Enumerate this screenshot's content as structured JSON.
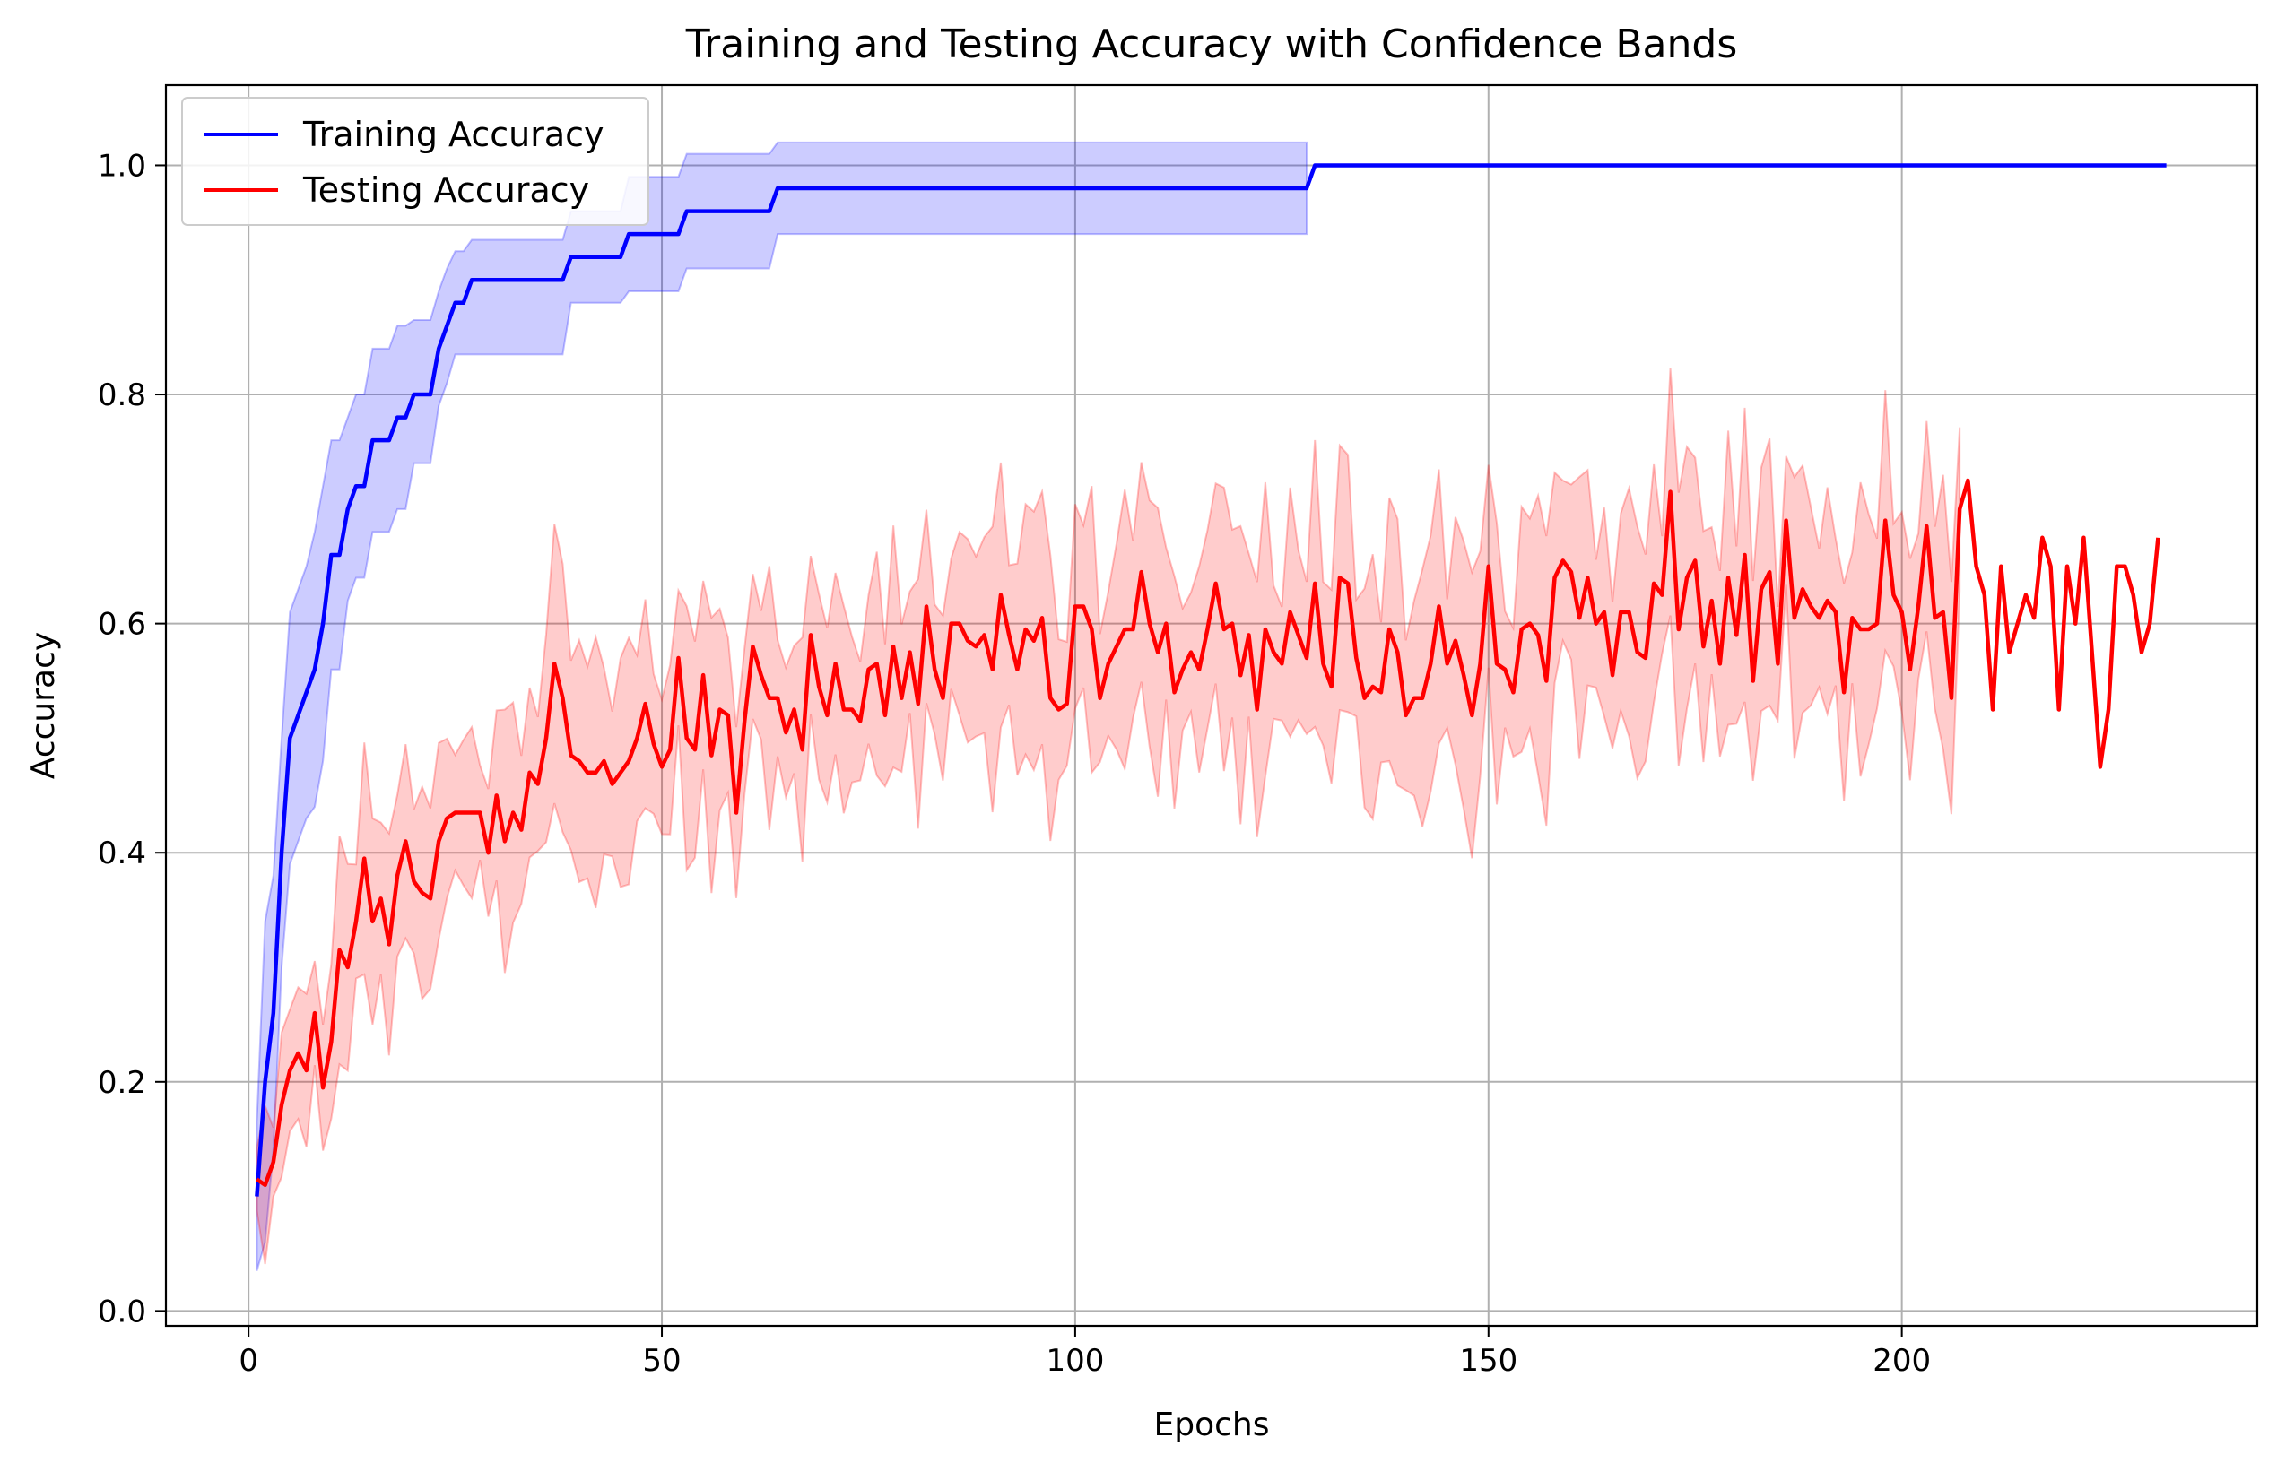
{
  "chart_data": {
    "type": "line",
    "title": "Training and Testing Accuracy with Confidence Bands",
    "xlabel": "Epochs",
    "ylabel": "Accuracy",
    "xlim": [
      -10,
      243
    ],
    "ylim": [
      -0.013,
      1.07
    ],
    "xticks": [
      0,
      50,
      100,
      150,
      200
    ],
    "yticks": [
      0.0,
      0.2,
      0.4,
      0.6,
      0.8,
      1.0
    ],
    "xtick_labels": [
      "0",
      "50",
      "100",
      "150",
      "200"
    ],
    "ytick_labels": [
      "0.0",
      "0.2",
      "0.4",
      "0.6",
      "0.8",
      "1.0"
    ],
    "grid": true,
    "legend_position": "top-left",
    "series": [
      {
        "name": "Training Accuracy",
        "color": "#0000ff",
        "band_color": "#0000ff",
        "band_opacity": 0.2,
        "band_end_epoch": 129,
        "points": [
          [
            1,
            0.1
          ],
          [
            2,
            0.2
          ],
          [
            3,
            0.26
          ],
          [
            4,
            0.4
          ],
          [
            5,
            0.5
          ],
          [
            6,
            0.52
          ],
          [
            7,
            0.54
          ],
          [
            8,
            0.56
          ],
          [
            9,
            0.6
          ],
          [
            10,
            0.66
          ],
          [
            11,
            0.66
          ],
          [
            12,
            0.7
          ],
          [
            13,
            0.72
          ],
          [
            14,
            0.72
          ],
          [
            15,
            0.76
          ],
          [
            16,
            0.76
          ],
          [
            17,
            0.76
          ],
          [
            18,
            0.78
          ],
          [
            19,
            0.78
          ],
          [
            20,
            0.8
          ],
          [
            21,
            0.8
          ],
          [
            22,
            0.8
          ],
          [
            23,
            0.84
          ],
          [
            24,
            0.86
          ],
          [
            25,
            0.88
          ],
          [
            26,
            0.88
          ],
          [
            27,
            0.9
          ],
          [
            28,
            0.9
          ],
          [
            38,
            0.9
          ],
          [
            39,
            0.92
          ],
          [
            45,
            0.92
          ],
          [
            46,
            0.94
          ],
          [
            52,
            0.94
          ],
          [
            53,
            0.96
          ],
          [
            63,
            0.96
          ],
          [
            64,
            0.98
          ],
          [
            128,
            0.98
          ],
          [
            129,
            1.0
          ],
          [
            232,
            1.0
          ]
        ],
        "band": [
          [
            1,
            0.035,
            0.165
          ],
          [
            2,
            0.06,
            0.34
          ],
          [
            3,
            0.14,
            0.38
          ],
          [
            4,
            0.3,
            0.5
          ],
          [
            5,
            0.39,
            0.61
          ],
          [
            6,
            0.41,
            0.63
          ],
          [
            7,
            0.43,
            0.65
          ],
          [
            8,
            0.44,
            0.68
          ],
          [
            9,
            0.48,
            0.72
          ],
          [
            10,
            0.56,
            0.76
          ],
          [
            11,
            0.56,
            0.76
          ],
          [
            12,
            0.62,
            0.78
          ],
          [
            13,
            0.64,
            0.8
          ],
          [
            14,
            0.64,
            0.8
          ],
          [
            15,
            0.68,
            0.84
          ],
          [
            16,
            0.68,
            0.84
          ],
          [
            17,
            0.68,
            0.84
          ],
          [
            18,
            0.7,
            0.86
          ],
          [
            19,
            0.7,
            0.86
          ],
          [
            20,
            0.74,
            0.865
          ],
          [
            21,
            0.74,
            0.865
          ],
          [
            22,
            0.74,
            0.865
          ],
          [
            23,
            0.79,
            0.89
          ],
          [
            24,
            0.81,
            0.91
          ],
          [
            25,
            0.835,
            0.925
          ],
          [
            26,
            0.835,
            0.925
          ],
          [
            27,
            0.835,
            0.935
          ],
          [
            28,
            0.835,
            0.935
          ],
          [
            38,
            0.835,
            0.935
          ],
          [
            39,
            0.88,
            0.96
          ],
          [
            45,
            0.88,
            0.96
          ],
          [
            46,
            0.89,
            0.99
          ],
          [
            52,
            0.89,
            0.99
          ],
          [
            53,
            0.91,
            1.01
          ],
          [
            63,
            0.91,
            1.01
          ],
          [
            64,
            0.94,
            1.02
          ],
          [
            128,
            0.94,
            1.02
          ]
        ]
      },
      {
        "name": "Testing Accuracy",
        "color": "#ff0000",
        "band_color": "#ff0000",
        "band_opacity": 0.2,
        "band_end_epoch": 207,
        "values": [
          0.115,
          0.11,
          0.13,
          0.18,
          0.21,
          0.225,
          0.21,
          0.26,
          0.195,
          0.235,
          0.315,
          0.3,
          0.34,
          0.395,
          0.34,
          0.36,
          0.32,
          0.38,
          0.41,
          0.375,
          0.365,
          0.36,
          0.41,
          0.43,
          0.435,
          0.435,
          0.435,
          0.435,
          0.4,
          0.45,
          0.41,
          0.435,
          0.42,
          0.47,
          0.46,
          0.5,
          0.565,
          0.535,
          0.485,
          0.48,
          0.47,
          0.47,
          0.48,
          0.46,
          0.47,
          0.48,
          0.5,
          0.53,
          0.495,
          0.475,
          0.49,
          0.57,
          0.5,
          0.49,
          0.555,
          0.485,
          0.525,
          0.52,
          0.435,
          0.515,
          0.58,
          0.555,
          0.535,
          0.535,
          0.505,
          0.525,
          0.49,
          0.59,
          0.545,
          0.52,
          0.565,
          0.525,
          0.525,
          0.515,
          0.56,
          0.565,
          0.52,
          0.58,
          0.535,
          0.575,
          0.53,
          0.615,
          0.56,
          0.535,
          0.6,
          0.6,
          0.585,
          0.58,
          0.59,
          0.56,
          0.625,
          0.59,
          0.56,
          0.595,
          0.585,
          0.605,
          0.535,
          0.525,
          0.53,
          0.615,
          0.615,
          0.595,
          0.535,
          0.565,
          0.58,
          0.595,
          0.595,
          0.645,
          0.6,
          0.575,
          0.6,
          0.54,
          0.56,
          0.575,
          0.56,
          0.595,
          0.635,
          0.595,
          0.6,
          0.555,
          0.59,
          0.525,
          0.595,
          0.575,
          0.565,
          0.61,
          0.59,
          0.57,
          0.635,
          0.565,
          0.545,
          0.64,
          0.635,
          0.57,
          0.535,
          0.545,
          0.54,
          0.595,
          0.575,
          0.52,
          0.535,
          0.535,
          0.565,
          0.615,
          0.565,
          0.585,
          0.555,
          0.52,
          0.565,
          0.65,
          0.565,
          0.56,
          0.54,
          0.595,
          0.6,
          0.59,
          0.55,
          0.64,
          0.655,
          0.645,
          0.605,
          0.64,
          0.6,
          0.61,
          0.555,
          0.61,
          0.61,
          0.575,
          0.57,
          0.635,
          0.625,
          0.715,
          0.595,
          0.64,
          0.655,
          0.58,
          0.62,
          0.565,
          0.64,
          0.59,
          0.66,
          0.55,
          0.63,
          0.645,
          0.565,
          0.69,
          0.605,
          0.63,
          0.615,
          0.605,
          0.62,
          0.61,
          0.54,
          0.605,
          0.595,
          0.595,
          0.6,
          0.69,
          0.625,
          0.61,
          0.56,
          0.615,
          0.685,
          0.605,
          0.61,
          0.535,
          0.7,
          0.725,
          0.65,
          0.625,
          0.525,
          0.65,
          0.575,
          0.6,
          0.625,
          0.605,
          0.675,
          0.65,
          0.525,
          0.65,
          0.6,
          0.675,
          0.575,
          0.475,
          0.525,
          0.65,
          0.65,
          0.625,
          0.575,
          0.6,
          0.675
        ],
        "band_halfwidth": [
          0.05,
          0.05,
          0.05,
          0.06,
          0.06,
          0.06,
          0.06,
          0.065,
          0.065,
          0.065,
          0.07,
          0.07,
          0.07,
          0.07,
          0.07,
          0.07,
          0.07,
          0.075,
          0.075,
          0.075,
          0.075,
          0.075,
          0.075,
          0.075,
          0.075,
          0.075,
          0.075,
          0.075,
          0.08,
          0.08,
          0.08,
          0.08,
          0.08,
          0.08,
          0.08,
          0.085,
          0.085,
          0.085,
          0.085,
          0.085,
          0.085,
          0.085,
          0.085,
          0.085,
          0.085,
          0.085,
          0.09,
          0.09,
          0.09,
          0.09,
          0.09,
          0.09,
          0.09,
          0.09,
          0.09,
          0.09,
          0.09,
          0.09,
          0.09,
          0.09,
          0.09,
          0.09,
          0.09,
          0.09,
          0.09,
          0.09,
          0.09,
          0.09,
          0.09,
          0.09,
          0.09,
          0.09,
          0.09,
          0.09,
          0.09,
          0.09,
          0.09,
          0.09,
          0.09,
          0.09,
          0.09,
          0.09,
          0.09,
          0.09,
          0.09,
          0.09,
          0.09,
          0.09,
          0.09,
          0.09,
          0.09,
          0.09,
          0.09,
          0.09,
          0.09,
          0.09,
          0.09,
          0.09,
          0.09,
          0.09,
          0.09,
          0.09,
          0.09,
          0.09,
          0.09,
          0.09,
          0.09,
          0.09,
          0.09,
          0.09,
          0.09,
          0.09,
          0.09,
          0.09,
          0.09,
          0.09,
          0.09,
          0.09,
          0.09,
          0.09,
          0.09,
          0.09,
          0.09,
          0.09,
          0.09,
          0.09,
          0.09,
          0.09,
          0.09,
          0.09,
          0.09,
          0.09,
          0.09,
          0.09,
          0.09,
          0.09,
          0.09,
          0.09,
          0.09,
          0.09,
          0.09,
          0.09,
          0.09,
          0.09,
          0.09,
          0.09,
          0.09,
          0.09,
          0.09,
          0.09,
          0.09,
          0.09,
          0.09,
          0.09,
          0.09,
          0.09,
          0.09,
          0.09,
          0.09,
          0.09,
          0.09,
          0.09,
          0.09,
          0.09,
          0.09,
          0.09,
          0.09,
          0.09,
          0.09,
          0.09,
          0.09,
          0.09,
          0.09,
          0.09,
          0.09,
          0.09,
          0.09,
          0.09,
          0.09,
          0.09,
          0.09,
          0.09,
          0.09,
          0.09,
          0.09,
          0.09,
          0.09,
          0.09,
          0.09,
          0.09,
          0.09,
          0.09,
          0.09,
          0.09,
          0.09,
          0.09,
          0.09,
          0.09,
          0.09,
          0.09,
          0.09,
          0.09,
          0.09,
          0.09,
          0.09,
          0.09,
          0.09
        ]
      }
    ]
  }
}
